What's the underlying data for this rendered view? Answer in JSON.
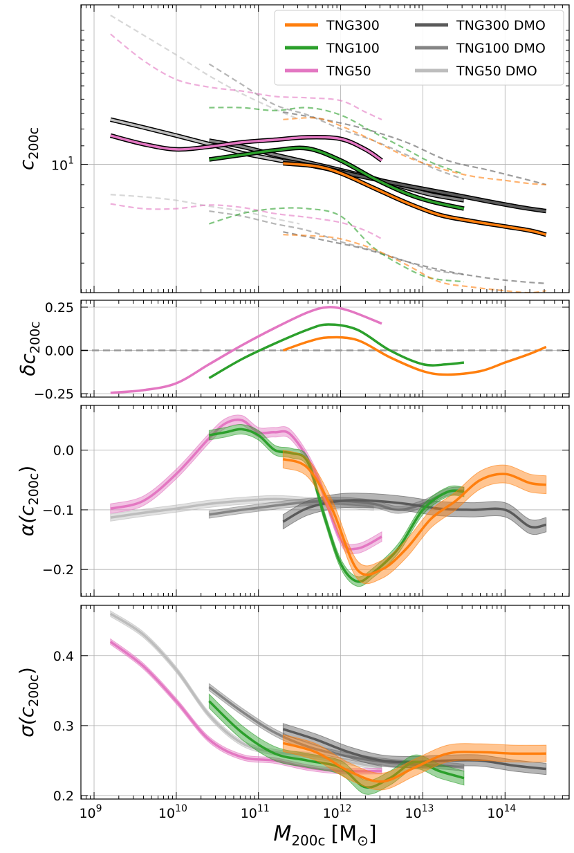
{
  "chart_data": {
    "type": "line",
    "figure_type": "four stacked line panels sharing a log-scaled x axis",
    "shared_x": {
      "label_main": "M",
      "label_sub": "200c",
      "label_unit": "[M",
      "label_unit_sub": "⊙",
      "label_close": "]",
      "scale": "log10",
      "xlim_log10": [
        8.84,
        14.78
      ],
      "ticks_log10": [
        9,
        10,
        11,
        12,
        13,
        14
      ],
      "tick_base": "10",
      "tick_exponents": [
        "9",
        "10",
        "11",
        "12",
        "13",
        "14"
      ]
    },
    "legend": {
      "location": "top-right of top panel",
      "entries": [
        {
          "key": "tng300",
          "label": "TNG300",
          "color": "#ff7f0e"
        },
        {
          "key": "tng100",
          "label": "TNG100",
          "color": "#2ca02c"
        },
        {
          "key": "tng50",
          "label": "TNG50",
          "color": "#e377c2"
        },
        {
          "key": "tng300dmo",
          "label": "TNG300 DMO",
          "color": "#5a5a5a"
        },
        {
          "key": "tng100dmo",
          "label": "TNG100 DMO",
          "color": "#858585"
        },
        {
          "key": "tng50dmo",
          "label": "TNG50   DMO",
          "color": "#bdbdbd"
        }
      ]
    },
    "series_style": {
      "tng300": {
        "color": "#ff7f0e"
      },
      "tng100": {
        "color": "#2ca02c"
      },
      "tng50": {
        "color": "#e377c2"
      },
      "tng300dmo": {
        "color": "#5a5a5a"
      },
      "tng100dmo": {
        "color": "#858585"
      },
      "tng50dmo": {
        "color": "#bdbdbd"
      }
    },
    "panels": [
      {
        "id": "c200c",
        "ylabel_main": "c",
        "ylabel_sub": "200c",
        "yscale": "log10",
        "ylim": [
          5.15,
          22.8
        ],
        "ytick_values": [
          10
        ],
        "ytick_base": "10",
        "ytick_exp": "1",
        "grid_y": [
          10
        ],
        "series_kind": "median with dashed 16th/84th percentiles",
        "series": [
          {
            "key": "tng50dmo",
            "log10M": [
              9.2,
              9.6,
              10.0,
              10.4,
              10.8,
              11.2,
              11.5
            ],
            "median": [
              12.6,
              12.1,
              11.6,
              11.1,
              10.6,
              10.25,
              10.0
            ],
            "p84": [
              21.6,
              19.5,
              17.6,
              15.8,
              14.4,
              13.3,
              12.6
            ],
            "p16": [
              8.55,
              8.45,
              8.3,
              8.05,
              7.85,
              7.55,
              7.35
            ]
          },
          {
            "key": "tng100dmo",
            "log10M": [
              10.4,
              10.8,
              11.2,
              11.6,
              12.0,
              12.4,
              12.8,
              13.1,
              13.5
            ],
            "median": [
              11.3,
              10.95,
              10.5,
              10.1,
              9.7,
              9.3,
              8.85,
              8.55,
              8.3
            ],
            "p84": [
              16.8,
              15.1,
              13.6,
              12.9,
              12.0,
              11.3,
              10.5,
              9.85,
              9.25
            ],
            "p16": [
              7.85,
              7.65,
              7.35,
              7.1,
              6.7,
              6.4,
              6.05,
              5.8,
              5.65
            ]
          },
          {
            "key": "tng300dmo",
            "log10M": [
              11.3,
              11.8,
              12.3,
              12.8,
              13.3,
              13.8,
              14.2,
              14.5
            ],
            "median": [
              10.2,
              9.8,
              9.35,
              8.95,
              8.6,
              8.25,
              8.0,
              7.85
            ],
            "p84": [
              13.1,
              12.6,
              12.0,
              11.2,
              10.2,
              9.7,
              9.3,
              9.0
            ],
            "p16": [
              7.05,
              6.75,
              6.45,
              6.05,
              5.75,
              5.55,
              5.45,
              5.4
            ]
          },
          {
            "key": "tng50",
            "log10M": [
              9.2,
              9.6,
              10.0,
              10.4,
              10.8,
              11.2,
              11.6,
              12.0,
              12.3,
              12.5
            ],
            "median": [
              11.6,
              11.1,
              10.8,
              10.95,
              11.2,
              11.35,
              11.5,
              11.4,
              10.8,
              10.2
            ],
            "p84": [
              19.6,
              17.1,
              15.5,
              14.9,
              14.6,
              14.2,
              14.1,
              13.9,
              13.1,
              12.6
            ],
            "p16": [
              8.15,
              7.95,
              7.95,
              8.1,
              8.0,
              7.75,
              7.6,
              7.4,
              7.1,
              6.8
            ]
          },
          {
            "key": "tng100",
            "log10M": [
              10.4,
              10.8,
              11.2,
              11.6,
              12.0,
              12.4,
              12.8,
              13.1,
              13.5
            ],
            "median": [
              10.25,
              10.5,
              10.75,
              10.85,
              10.2,
              9.3,
              8.6,
              8.25,
              7.95
            ],
            "p84": [
              13.4,
              13.4,
              13.2,
              13.4,
              12.9,
              11.8,
              10.8,
              10.1,
              9.5
            ],
            "p16": [
              7.35,
              7.75,
              7.95,
              7.95,
              7.65,
              6.5,
              5.85,
              5.55,
              5.45
            ]
          },
          {
            "key": "tng300",
            "log10M": [
              11.3,
              11.7,
              12.0,
              12.4,
              12.8,
              13.2,
              13.6,
              14.0,
              14.3,
              14.5
            ],
            "median": [
              10.05,
              9.9,
              9.55,
              8.85,
              8.2,
              7.7,
              7.45,
              7.25,
              7.1,
              6.95
            ],
            "p84": [
              12.6,
              12.7,
              12.2,
              11.3,
              10.4,
              9.8,
              9.4,
              9.2,
              9.05,
              9.0
            ],
            "p16": [
              6.95,
              6.9,
              6.8,
              6.45,
              5.95,
              5.45,
              5.3,
              5.2,
              5.15,
              5.2
            ]
          }
        ]
      },
      {
        "id": "delta",
        "ylabel_main": "δc",
        "ylabel_sub": "200c",
        "yscale": "linear",
        "ylim": [
          -0.27,
          0.29
        ],
        "ytick_values": [
          -0.25,
          0.0,
          0.25
        ],
        "ytick_labels": [
          "−0.25",
          "0.00",
          "0.25"
        ],
        "reference_line": 0.0,
        "series_kind": "single curve",
        "series": [
          {
            "key": "tng50",
            "log10M": [
              9.2,
              9.6,
              10.0,
              10.4,
              10.8,
              11.2,
              11.6,
              11.85,
              12.1,
              12.5
            ],
            "values": [
              -0.245,
              -0.23,
              -0.19,
              -0.08,
              0.03,
              0.13,
              0.22,
              0.25,
              0.23,
              0.155
            ]
          },
          {
            "key": "tng100",
            "log10M": [
              10.4,
              10.8,
              11.2,
              11.6,
              11.85,
              12.2,
              12.6,
              13.0,
              13.3,
              13.5
            ],
            "values": [
              -0.16,
              -0.05,
              0.04,
              0.12,
              0.15,
              0.12,
              0.0,
              -0.08,
              -0.08,
              -0.07
            ]
          },
          {
            "key": "tng300",
            "log10M": [
              11.3,
              11.6,
              11.85,
              12.2,
              12.6,
              13.0,
              13.3,
              13.7,
              14.0,
              14.3,
              14.5
            ],
            "values": [
              0.0,
              0.05,
              0.075,
              0.06,
              -0.04,
              -0.12,
              -0.14,
              -0.12,
              -0.07,
              -0.02,
              0.02
            ]
          }
        ]
      },
      {
        "id": "alpha",
        "ylabel_main": "α(c",
        "ylabel_sub": "200c",
        "ylabel_close": ")",
        "yscale": "linear",
        "ylim": [
          -0.245,
          0.075
        ],
        "ytick_values": [
          -0.2,
          -0.1,
          0.0
        ],
        "ytick_labels": [
          "−0.2",
          "−0.1",
          "0.0"
        ],
        "series_kind": "median with shaded band",
        "series": [
          {
            "key": "tng50dmo",
            "log10M": [
              9.2,
              9.6,
              10.0,
              10.4,
              10.8,
              11.2,
              11.6,
              12.0,
              12.4
            ],
            "values": [
              -0.113,
              -0.105,
              -0.098,
              -0.09,
              -0.085,
              -0.082,
              -0.085,
              -0.09,
              -0.095
            ],
            "band": 0.006
          },
          {
            "key": "tng100dmo",
            "log10M": [
              10.4,
              10.8,
              11.2,
              11.6,
              12.0,
              12.4,
              12.7,
              13.0,
              13.3,
              13.5
            ],
            "values": [
              -0.108,
              -0.1,
              -0.093,
              -0.087,
              -0.085,
              -0.09,
              -0.1,
              -0.09,
              -0.07,
              -0.068
            ],
            "band": 0.006
          },
          {
            "key": "tng300dmo",
            "log10M": [
              11.3,
              11.6,
              12.0,
              12.4,
              12.8,
              13.2,
              13.6,
              14.0,
              14.3,
              14.5
            ],
            "values": [
              -0.12,
              -0.097,
              -0.085,
              -0.085,
              -0.09,
              -0.098,
              -0.1,
              -0.1,
              -0.128,
              -0.125
            ],
            "band": 0.012
          },
          {
            "key": "tng50",
            "log10M": [
              9.2,
              9.6,
              10.0,
              10.4,
              10.6,
              10.8,
              11.0,
              11.2,
              11.4,
              11.7,
              12.0,
              12.2,
              12.5
            ],
            "values": [
              -0.098,
              -0.085,
              -0.04,
              0.02,
              0.045,
              0.05,
              0.03,
              0.03,
              0.025,
              -0.04,
              -0.15,
              -0.165,
              -0.145
            ],
            "band": 0.008
          },
          {
            "key": "tng100",
            "log10M": [
              10.4,
              10.6,
              10.8,
              11.0,
              11.2,
              11.4,
              11.6,
              11.8,
              12.0,
              12.2,
              12.4,
              12.7,
              13.0,
              13.3,
              13.5
            ],
            "values": [
              0.025,
              0.03,
              0.035,
              0.025,
              0.0,
              -0.005,
              -0.02,
              -0.11,
              -0.19,
              -0.22,
              -0.205,
              -0.165,
              -0.1,
              -0.07,
              -0.07
            ],
            "band": 0.008
          },
          {
            "key": "tng300",
            "log10M": [
              11.3,
              11.6,
              11.9,
              12.2,
              12.5,
              12.8,
              13.1,
              13.4,
              13.7,
              14.0,
              14.3,
              14.5
            ],
            "values": [
              -0.015,
              -0.03,
              -0.1,
              -0.2,
              -0.2,
              -0.165,
              -0.115,
              -0.085,
              -0.05,
              -0.04,
              -0.055,
              -0.058
            ],
            "band": 0.015
          }
        ]
      },
      {
        "id": "sigma",
        "ylabel_main": "σ(c",
        "ylabel_sub": "200c",
        "ylabel_close": ")",
        "yscale": "linear",
        "ylim": [
          0.195,
          0.472
        ],
        "ytick_values": [
          0.2,
          0.3,
          0.4
        ],
        "ytick_labels": [
          "0.2",
          "0.3",
          "0.4"
        ],
        "series_kind": "median with shaded band",
        "series": [
          {
            "key": "tng50dmo",
            "log10M": [
              9.2,
              9.6,
              10.0,
              10.4,
              10.8,
              11.2,
              11.6,
              12.0,
              12.5
            ],
            "values": [
              0.46,
              0.43,
              0.38,
              0.315,
              0.275,
              0.262,
              0.258,
              0.25,
              0.24
            ],
            "band": 0.004
          },
          {
            "key": "tng100dmo",
            "log10M": [
              10.4,
              10.8,
              11.2,
              11.6,
              12.0,
              12.4,
              12.8,
              13.2,
              13.5
            ],
            "values": [
              0.355,
              0.32,
              0.29,
              0.27,
              0.258,
              0.25,
              0.245,
              0.243,
              0.24
            ],
            "band": 0.005
          },
          {
            "key": "tng300dmo",
            "log10M": [
              11.3,
              11.7,
              12.1,
              12.5,
              12.9,
              13.3,
              13.7,
              14.1,
              14.5
            ],
            "values": [
              0.295,
              0.28,
              0.262,
              0.25,
              0.248,
              0.25,
              0.25,
              0.243,
              0.238
            ],
            "band": 0.008
          },
          {
            "key": "tng50",
            "log10M": [
              9.2,
              9.6,
              10.0,
              10.4,
              10.8,
              11.2,
              11.6,
              12.0,
              12.5
            ],
            "values": [
              0.42,
              0.385,
              0.335,
              0.28,
              0.255,
              0.25,
              0.24,
              0.235,
              0.235
            ],
            "band": 0.004
          },
          {
            "key": "tng100",
            "log10M": [
              10.4,
              10.8,
              11.2,
              11.6,
              12.0,
              12.3,
              12.6,
              12.9,
              13.2,
              13.5
            ],
            "values": [
              0.335,
              0.29,
              0.26,
              0.25,
              0.24,
              0.212,
              0.225,
              0.248,
              0.235,
              0.225
            ],
            "band": 0.01
          },
          {
            "key": "tng300",
            "log10M": [
              11.3,
              11.7,
              12.1,
              12.5,
              12.9,
              13.3,
              13.7,
              14.1,
              14.5
            ],
            "values": [
              0.275,
              0.262,
              0.235,
              0.22,
              0.24,
              0.26,
              0.262,
              0.26,
              0.26
            ],
            "band": 0.012
          }
        ]
      }
    ]
  }
}
